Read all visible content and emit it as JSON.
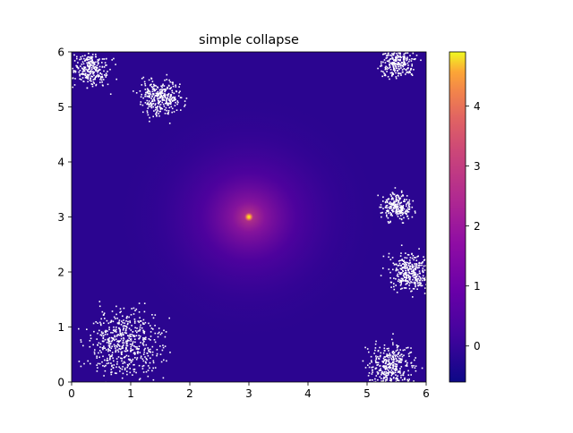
{
  "chart_data": {
    "type": "heatmap",
    "title": "simple collapse",
    "xlabel": "",
    "ylabel": "",
    "xlim": [
      0,
      6
    ],
    "ylim": [
      0,
      6
    ],
    "x_ticks": [
      0,
      1,
      2,
      3,
      4,
      5,
      6
    ],
    "y_ticks": [
      0,
      1,
      2,
      3,
      4,
      5,
      6
    ],
    "colormap": "plasma",
    "colorbar": {
      "range": [
        -0.6,
        4.9
      ],
      "ticks": [
        0,
        1,
        2,
        3,
        4
      ]
    },
    "peak": {
      "x": 3.0,
      "y": 3.0,
      "value": 4.9
    },
    "background_value": -0.35,
    "empty_regions": [
      {
        "x": 0.9,
        "y": 0.7,
        "spread": 0.6
      },
      {
        "x": 5.4,
        "y": 0.3,
        "spread": 0.4
      },
      {
        "x": 5.7,
        "y": 2.0,
        "spread": 0.35
      },
      {
        "x": 5.5,
        "y": 5.85,
        "spread": 0.3
      },
      {
        "x": 0.3,
        "y": 5.7,
        "spread": 0.3
      },
      {
        "x": 1.5,
        "y": 5.2,
        "spread": 0.35
      },
      {
        "x": 5.5,
        "y": 3.2,
        "spread": 0.25
      }
    ],
    "colors": {
      "background": "#2b0590",
      "mid": "#5c01a6",
      "peak": "#f0f921"
    }
  }
}
